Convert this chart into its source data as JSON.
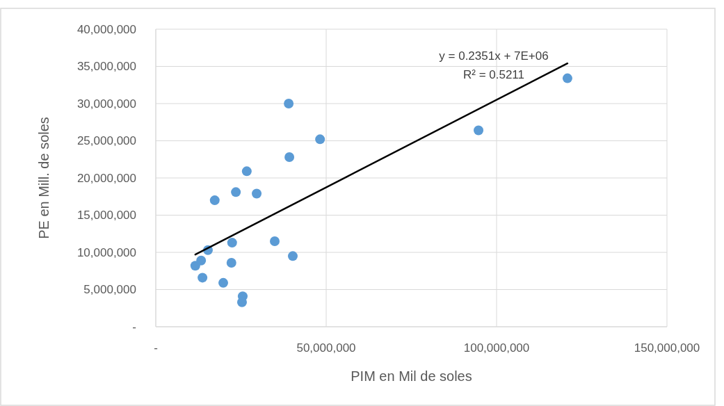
{
  "chart_data": {
    "type": "scatter",
    "xlabel": "PIM en Mil de soles",
    "ylabel": "PE en Mill. de soles",
    "xlim": [
      0,
      150000000
    ],
    "xticks": [
      {
        "value": 0,
        "label": "-"
      },
      {
        "value": 50000000,
        "label": "50,000,000"
      },
      {
        "value": 100000000,
        "label": "100,000,000"
      },
      {
        "value": 150000000,
        "label": "150,000,000"
      }
    ],
    "ylim": [
      0,
      40000000
    ],
    "yticks": [
      {
        "value": 0,
        "label": "-"
      },
      {
        "value": 5000000,
        "label": "5,000,000"
      },
      {
        "value": 10000000,
        "label": "10,000,000"
      },
      {
        "value": 15000000,
        "label": "15,000,000"
      },
      {
        "value": 20000000,
        "label": "20,000,000"
      },
      {
        "value": 25000000,
        "label": "25,000,000"
      },
      {
        "value": 30000000,
        "label": "30,000,000"
      },
      {
        "value": 35000000,
        "label": "35,000,000"
      },
      {
        "value": 40000000,
        "label": "40,000,000"
      }
    ],
    "grid": true,
    "series": [
      {
        "color": "#5b9bd5",
        "marker": "circle",
        "x": [
          11600000,
          13300000,
          15300000,
          13700000,
          17300000,
          19800000,
          22400000,
          22200000,
          23500000,
          25500000,
          25300000,
          26700000,
          29600000,
          34900000,
          39000000,
          39200000,
          40200000,
          48200000,
          94700000,
          120800000
        ],
        "values": [
          8200000,
          8900000,
          10300000,
          6600000,
          17000000,
          5900000,
          11300000,
          8600000,
          18100000,
          4100000,
          3300000,
          20900000,
          17900000,
          11500000,
          30000000,
          22800000,
          9500000,
          25200000,
          26400000,
          33400000
        ]
      },
      {
        "type": "line",
        "color": "#000000",
        "line_style": "solid",
        "marker": "none",
        "x": [
          11600000,
          120800000
        ],
        "values": [
          9700000,
          35400000
        ]
      }
    ],
    "annotations": [
      "y = 0.2351x + 7E+06",
      "R² = 0.5211"
    ]
  }
}
